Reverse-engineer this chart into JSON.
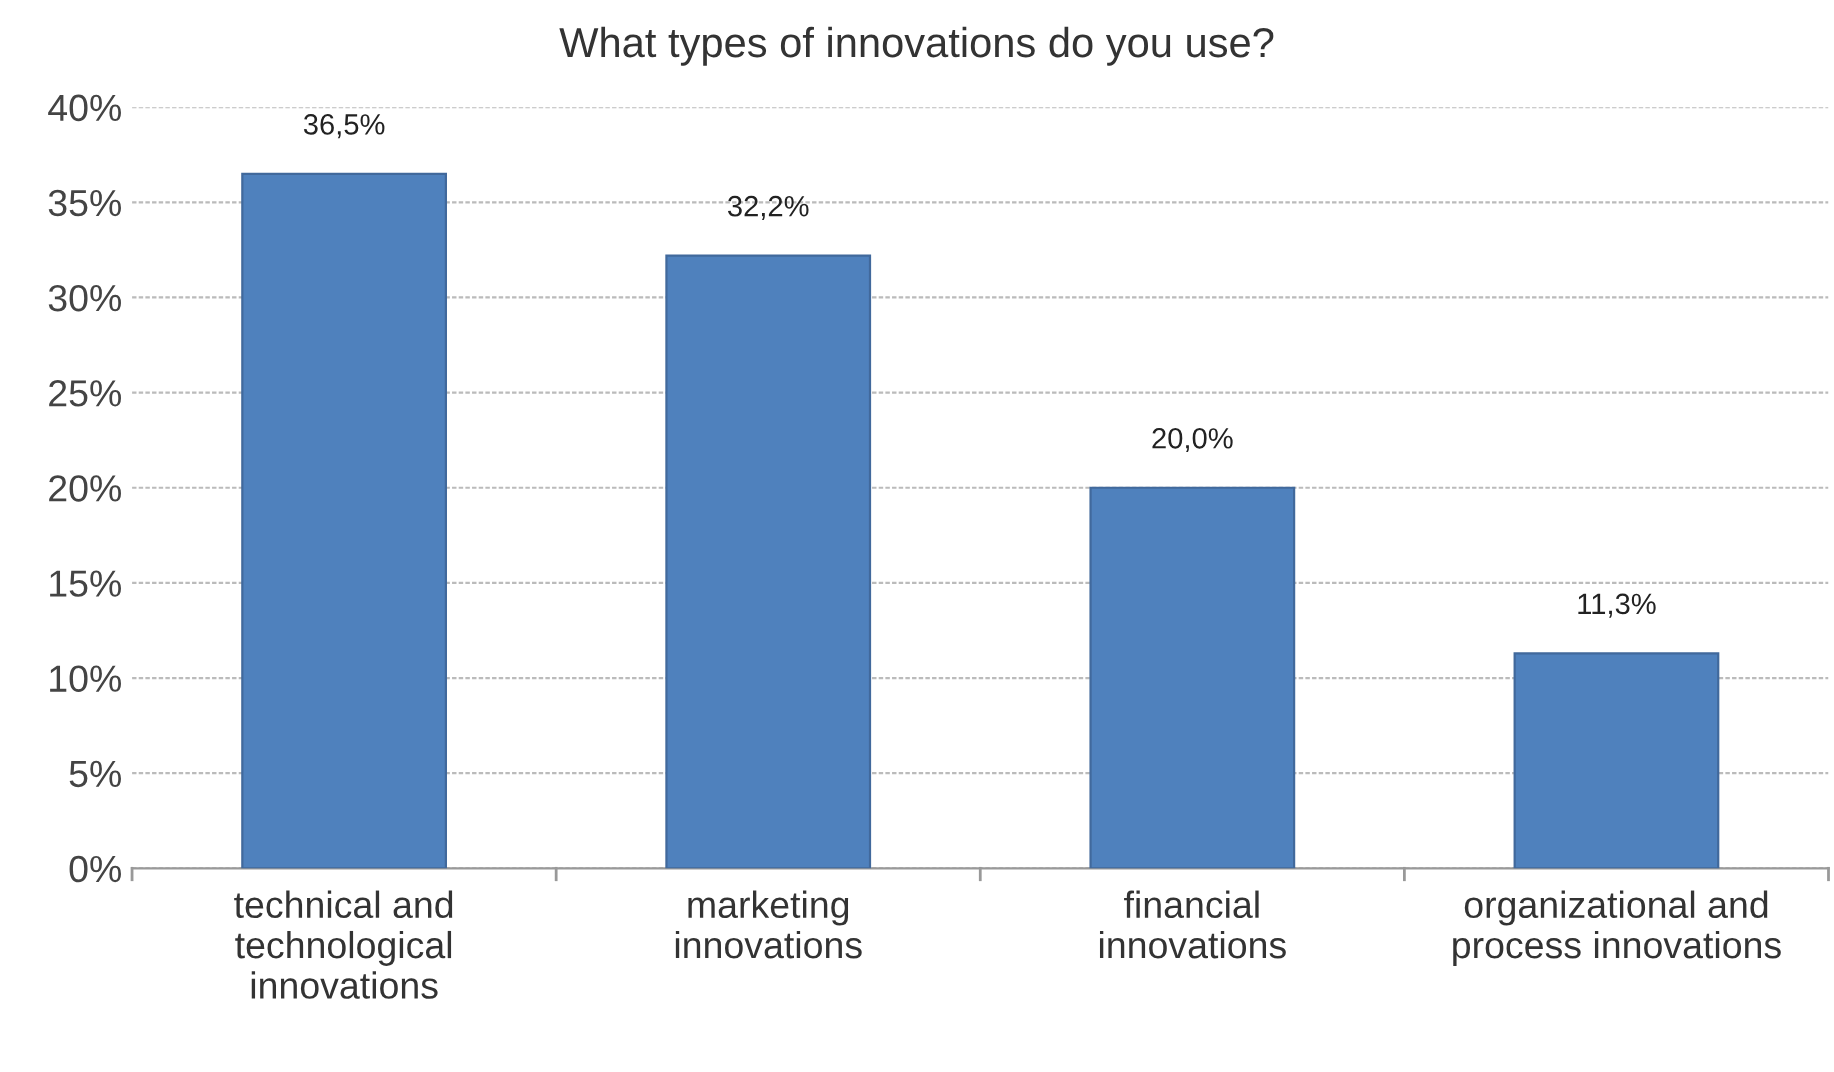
{
  "chart_data": {
    "type": "bar",
    "title": "What types of innovations do you use?",
    "categories": [
      "technical and technological innovations",
      "marketing innovations",
      "financial innovations",
      "organizational and process innovations"
    ],
    "values": [
      36.5,
      32.2,
      20.0,
      11.3
    ],
    "value_labels": [
      "36,5%",
      "32,2%",
      "20,0%",
      "11,3%"
    ],
    "color": "#4f81bd",
    "ylim": [
      0,
      40
    ],
    "yticks": [
      {
        "value": 0,
        "label": "0%"
      },
      {
        "value": 5,
        "label": "5%"
      },
      {
        "value": 10,
        "label": "10%"
      },
      {
        "value": 15,
        "label": "15%"
      },
      {
        "value": 20,
        "label": "20%"
      },
      {
        "value": 25,
        "label": "25%"
      },
      {
        "value": 30,
        "label": "30%"
      },
      {
        "value": 35,
        "label": "35%"
      },
      {
        "value": 40,
        "label": "40%"
      }
    ],
    "grid": "y"
  }
}
